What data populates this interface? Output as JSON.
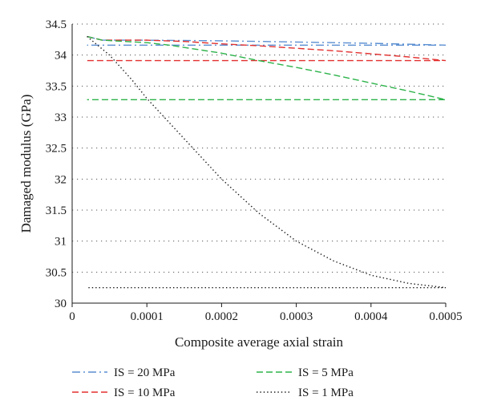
{
  "chart_data": {
    "type": "line",
    "xlabel": "Composite average axial strain",
    "ylabel": "Damaged modulus (GPa)",
    "xlim": [
      0,
      0.0005
    ],
    "ylim": [
      30,
      34.5
    ],
    "x_ticks": [
      "0",
      "0.0001",
      "0.0002",
      "0.0003",
      "0.0004",
      "0.0005"
    ],
    "y_ticks": [
      "30",
      "30.5",
      "31",
      "31.5",
      "32",
      "32.5",
      "33",
      "33.5",
      "34",
      "34.5"
    ],
    "grid": "horizontal-dotted",
    "legend_position": "bottom",
    "series": [
      {
        "name": "IS = 20 MPa",
        "color": "#5b8fd1",
        "style": "dash-dot",
        "points": [
          [
            2e-05,
            34.3
          ],
          [
            4e-05,
            34.24
          ],
          [
            0.0001,
            34.24
          ],
          [
            0.0002,
            34.23
          ],
          [
            0.0003,
            34.21
          ],
          [
            0.0004,
            34.19
          ],
          [
            0.0005,
            34.16
          ],
          [
            0.0004,
            34.16
          ],
          [
            0.0002,
            34.16
          ],
          [
            2e-05,
            34.16
          ]
        ]
      },
      {
        "name": "IS = 10 MPa",
        "color": "#e2302f",
        "style": "dashed",
        "points": [
          [
            2e-05,
            34.3
          ],
          [
            4e-05,
            34.24
          ],
          [
            0.0001,
            34.24
          ],
          [
            0.00015,
            34.22
          ],
          [
            0.0002,
            34.18
          ],
          [
            0.00025,
            34.15
          ],
          [
            0.0003,
            34.11
          ],
          [
            0.00035,
            34.07
          ],
          [
            0.0004,
            34.02
          ],
          [
            0.00045,
            33.97
          ],
          [
            0.0005,
            33.91
          ],
          [
            0.0003,
            33.91
          ],
          [
            2e-05,
            33.91
          ]
        ]
      },
      {
        "name": "IS = 5 MPa",
        "color": "#2db34a",
        "style": "dashed",
        "points": [
          [
            2e-05,
            34.3
          ],
          [
            4e-05,
            34.24
          ],
          [
            0.0001,
            34.2
          ],
          [
            0.00013,
            34.16
          ],
          [
            0.0002,
            34.03
          ],
          [
            0.00025,
            33.91
          ],
          [
            0.0003,
            33.8
          ],
          [
            0.00035,
            33.68
          ],
          [
            0.0004,
            33.55
          ],
          [
            0.00045,
            33.42
          ],
          [
            0.0005,
            33.28
          ],
          [
            0.0003,
            33.28
          ],
          [
            2e-05,
            33.28
          ]
        ]
      },
      {
        "name": "IS = 1 MPa",
        "color": "#1a1a1a",
        "style": "dotted",
        "points": [
          [
            2e-05,
            34.3
          ],
          [
            5e-05,
            34.0
          ],
          [
            8e-05,
            33.6
          ],
          [
            0.0001,
            33.3
          ],
          [
            0.00015,
            32.65
          ],
          [
            0.0002,
            32.0
          ],
          [
            0.00025,
            31.45
          ],
          [
            0.0003,
            31.0
          ],
          [
            0.00035,
            30.68
          ],
          [
            0.0004,
            30.45
          ],
          [
            0.00045,
            30.32
          ],
          [
            0.0005,
            30.25
          ],
          [
            0.0003,
            30.25
          ],
          [
            2e-05,
            30.25
          ]
        ]
      }
    ]
  }
}
